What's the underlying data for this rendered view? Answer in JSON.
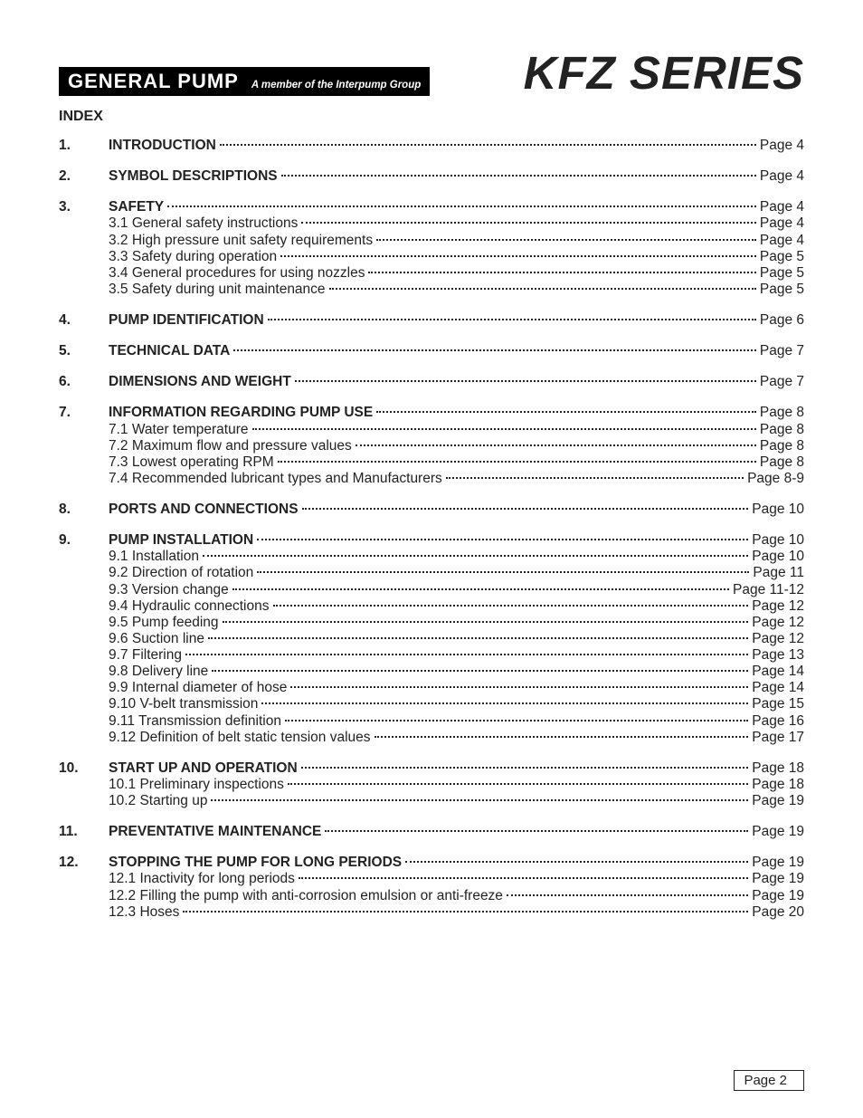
{
  "header": {
    "brand_name": "GENERAL PUMP",
    "brand_sub": "A member of the Interpump Group",
    "series_title": "KFZ SERIES"
  },
  "index_heading": "INDEX",
  "page_prefix": "Page ",
  "footer_page": "Page 2",
  "sections": [
    {
      "num": "1.",
      "title": "INTRODUCTION",
      "page": "4",
      "subs": []
    },
    {
      "num": "2.",
      "title": "SYMBOL DESCRIPTIONS",
      "page": "4",
      "subs": []
    },
    {
      "num": "3.",
      "title": "SAFETY",
      "page": "4",
      "subs": [
        {
          "label": "3.1 General safety instructions",
          "page": "4"
        },
        {
          "label": "3.2 High pressure unit safety requirements",
          "page": "4"
        },
        {
          "label": "3.3 Safety during operation",
          "page": "5"
        },
        {
          "label": "3.4 General procedures for using nozzles",
          "page": "5"
        },
        {
          "label": "3.5 Safety during unit maintenance",
          "page": "5"
        }
      ]
    },
    {
      "num": "4.",
      "title": "PUMP IDENTIFICATION",
      "page": "6",
      "subs": []
    },
    {
      "num": "5.",
      "title": "TECHNICAL DATA",
      "page": "7",
      "subs": []
    },
    {
      "num": "6.",
      "title": "DIMENSIONS AND WEIGHT",
      "page": "7",
      "subs": []
    },
    {
      "num": "7.",
      "title": "INFORMATION REGARDING PUMP USE",
      "page": "8",
      "subs": [
        {
          "label": "7.1 Water temperature",
          "page": "8"
        },
        {
          "label": "7.2 Maximum flow and pressure values",
          "page": "8"
        },
        {
          "label": "7.3 Lowest operating RPM",
          "page": "8"
        },
        {
          "label": "7.4 Recommended lubricant types and Manufacturers",
          "page": "8-9"
        }
      ]
    },
    {
      "num": "8.",
      "title": "PORTS AND CONNECTIONS",
      "page": "10",
      "subs": []
    },
    {
      "num": "9.",
      "title": "PUMP INSTALLATION",
      "page": "10",
      "subs": [
        {
          "label": "9.1 Installation",
          "page": "10"
        },
        {
          "label": "9.2 Direction of rotation",
          "page": "11"
        },
        {
          "label": "9.3 Version change",
          "page": "11-12"
        },
        {
          "label": "9.4 Hydraulic connections",
          "page": "12"
        },
        {
          "label": "9.5 Pump feeding",
          "page": "12"
        },
        {
          "label": "9.6 Suction line",
          "page": "12"
        },
        {
          "label": "9.7 Filtering",
          "page": "13"
        },
        {
          "label": "9.8 Delivery line",
          "page": "14"
        },
        {
          "label": "9.9 Internal diameter of hose",
          "page": "14"
        },
        {
          "label": "9.10 V-belt transmission",
          "page": "15"
        },
        {
          "label": "9.11 Transmission definition",
          "page": "16"
        },
        {
          "label": "9.12 Definition of belt static tension values",
          "page": "17"
        }
      ]
    },
    {
      "num": "10.",
      "title": "START UP AND OPERATION",
      "page": "18",
      "subs": [
        {
          "label": "10.1 Preliminary inspections",
          "page": "18"
        },
        {
          "label": "10.2 Starting up",
          "page": "19"
        }
      ]
    },
    {
      "num": "11.",
      "title": "PREVENTATIVE MAINTENANCE",
      "page": "19",
      "subs": []
    },
    {
      "num": "12.",
      "title": "STOPPING THE PUMP FOR LONG PERIODS",
      "page": "19",
      "subs": [
        {
          "label": "12.1 Inactivity for long periods",
          "page": "19"
        },
        {
          "label": "12.2 Filling the pump with anti-corrosion emulsion or anti-freeze",
          "page": "19"
        },
        {
          "label": "12.3 Hoses",
          "page": "20"
        }
      ]
    }
  ]
}
